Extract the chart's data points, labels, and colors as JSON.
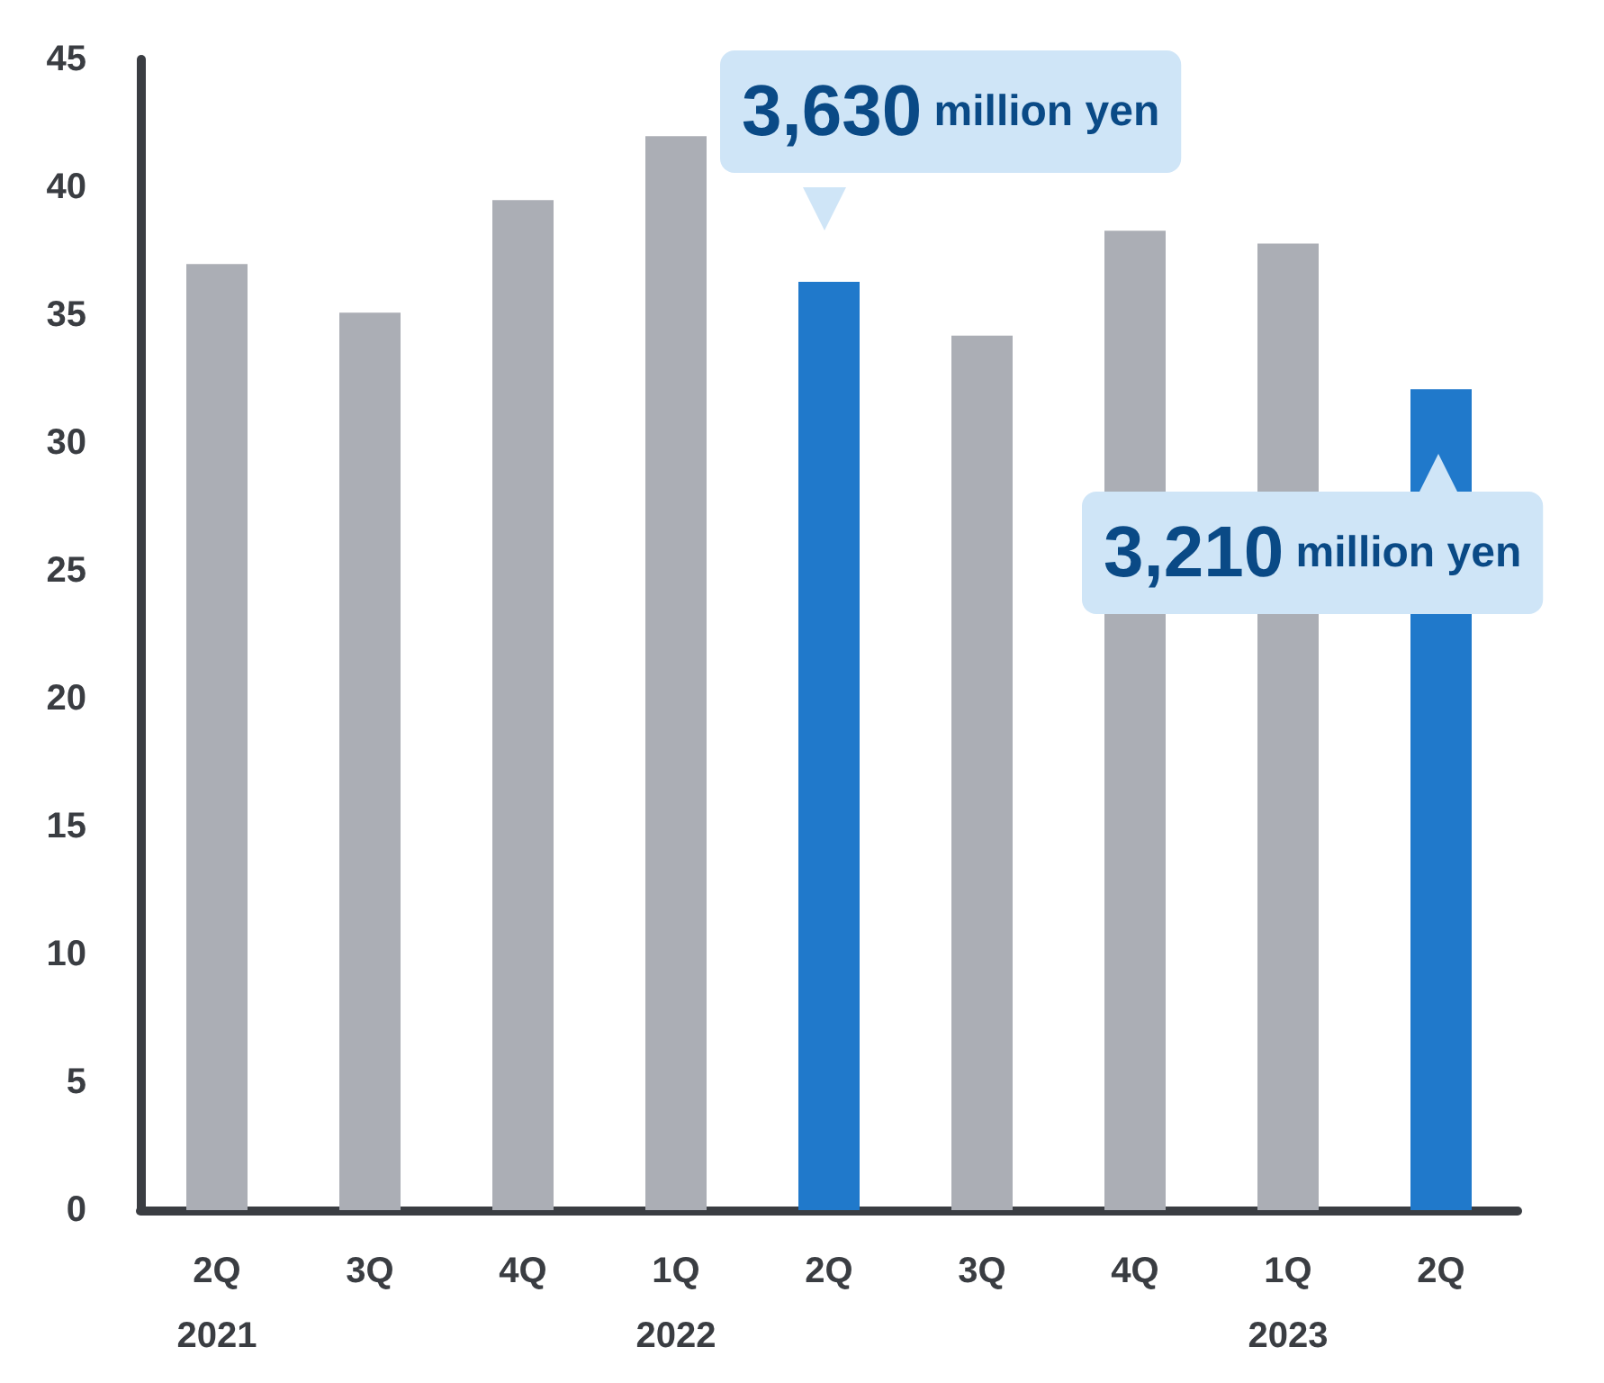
{
  "chart_data": {
    "type": "bar",
    "categories": [
      "2Q\n2021",
      "3Q",
      "4Q",
      "1Q\n2022",
      "2Q",
      "3Q",
      "4Q",
      "1Q\n2023",
      "2Q"
    ],
    "values": [
      37,
      35.1,
      39.5,
      42,
      36.3,
      34.2,
      38.3,
      37.8,
      32.1
    ],
    "colors": [
      "#abaeb5",
      "#abaeb5",
      "#abaeb5",
      "#abaeb5",
      "#2079cb",
      "#abaeb5",
      "#abaeb5",
      "#abaeb5",
      "#2079cb"
    ],
    "annotations": [
      "3,630 million yen",
      "3,210 million yen"
    ],
    "ylim": [
      0,
      45
    ],
    "yticks": [
      0,
      5,
      10,
      15,
      20,
      25,
      30,
      35,
      40,
      45
    ],
    "grid": false
  }
}
